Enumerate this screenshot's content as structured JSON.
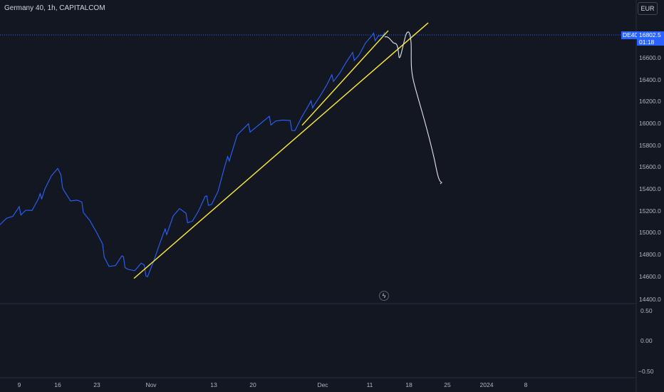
{
  "header": {
    "symbol_title": "Germany 40, 1h, CAPITALCOM"
  },
  "currency_button": {
    "label": "EUR"
  },
  "price_label": {
    "symbol": "DE40",
    "price": "16802.5",
    "countdown": "01:18"
  },
  "price_axis": {
    "ticks": [
      "16600.0",
      "16400.0",
      "16200.0",
      "16000.0",
      "15800.0",
      "15600.0",
      "15400.0",
      "15200.0",
      "15000.0",
      "14800.0",
      "14600.0",
      "14400.0"
    ]
  },
  "indicator_axis": {
    "ticks": [
      "0.50",
      "0.00",
      "−0.50"
    ]
  },
  "time_axis": {
    "ticks": [
      "9",
      "16",
      "23",
      "Nov",
      "13",
      "20",
      "Dec",
      "11",
      "18",
      "25",
      "2024",
      "8"
    ]
  },
  "icons": {
    "bolt": "ϟ"
  },
  "colors": {
    "background": "#131722",
    "price_line": "#2962ff",
    "trendline": "#ffeb3b",
    "drawing": "#e6e6e6",
    "grid": "#2a2e39"
  },
  "chart_data": {
    "type": "line",
    "series": [
      {
        "values": [
          15120,
          15150,
          15140,
          15200,
          15230,
          15200,
          15280,
          15430,
          15520,
          15560,
          15420,
          15300,
          15280,
          15230,
          15130,
          15000,
          14860,
          14720,
          14700,
          14760,
          14700,
          14660,
          14700,
          14640,
          14760,
          14900,
          15030,
          15170,
          15210,
          15140,
          15130,
          15200,
          15300,
          15290,
          15380,
          15570,
          15740,
          15900,
          15930,
          15960,
          15980,
          16000,
          16020,
          16040,
          16020,
          15990,
          15960,
          16050,
          16120,
          16200,
          16260,
          16330,
          16420,
          16470,
          16540,
          16600,
          16640,
          16720,
          16760,
          16820,
          16800
        ]
      }
    ],
    "ylim": [
      14380,
      16920
    ],
    "yticks": [
      14400,
      14600,
      14800,
      15000,
      15200,
      15400,
      15600,
      15800,
      16000,
      16200,
      16400,
      16600
    ],
    "indicator_ticks": [
      0.5,
      0.0,
      -0.5
    ],
    "last_price": 16802.5,
    "trendlines": [
      {
        "from": [
          14590
        ],
        "to": [
          16910
        ]
      },
      {
        "from": [
          15980
        ],
        "to": [
          16840
        ]
      }
    ],
    "grid": false
  }
}
